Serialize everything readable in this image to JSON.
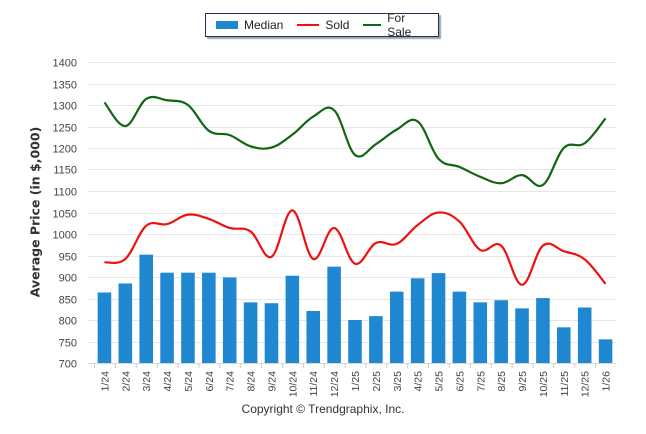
{
  "chart_data": {
    "type": "bar",
    "title": "",
    "xlabel": "",
    "ylabel": "Average Price (in $,000)",
    "ylim": [
      700,
      1400
    ],
    "yticks": [
      700,
      750,
      800,
      850,
      900,
      950,
      1000,
      1050,
      1100,
      1150,
      1200,
      1250,
      1300,
      1350,
      1400
    ],
    "grid": true,
    "legend_position": "top-center",
    "categories": [
      "1/24",
      "2/24",
      "3/24",
      "4/24",
      "5/24",
      "6/24",
      "7/24",
      "8/24",
      "9/24",
      "10/24",
      "11/24",
      "12/24",
      "1/25",
      "2/25",
      "3/25",
      "4/25",
      "5/25",
      "6/25",
      "7/25",
      "8/25",
      "9/25",
      "10/25",
      "11/25",
      "12/25",
      "1/26"
    ],
    "series": [
      {
        "name": "Median",
        "type": "bar",
        "color": "#1f88d0",
        "values": [
          864,
          885,
          952,
          910,
          910,
          910,
          899,
          841,
          839,
          903,
          821,
          924,
          800,
          809,
          866,
          897,
          909,
          866,
          841,
          846,
          827,
          851,
          783,
          829,
          755
        ]
      },
      {
        "name": "Sold",
        "type": "line",
        "color": "#ee1111",
        "values": [
          934,
          942,
          1019,
          1023,
          1045,
          1035,
          1014,
          1006,
          947,
          1055,
          942,
          1014,
          931,
          979,
          977,
          1021,
          1050,
          1029,
          963,
          973,
          882,
          973,
          960,
          941,
          884
        ]
      },
      {
        "name": "For Sale",
        "type": "line",
        "color": "#116611",
        "values": [
          1306,
          1251,
          1314,
          1311,
          1300,
          1240,
          1230,
          1204,
          1201,
          1231,
          1273,
          1288,
          1184,
          1209,
          1243,
          1262,
          1175,
          1156,
          1133,
          1118,
          1137,
          1114,
          1200,
          1211,
          1269
        ]
      }
    ]
  },
  "legend": {
    "items": [
      {
        "label": "Median",
        "color": "#1f88d0",
        "kind": "bar"
      },
      {
        "label": "Sold",
        "color": "#ee1111",
        "kind": "line"
      },
      {
        "label": "For Sale",
        "color": "#116611",
        "kind": "line"
      }
    ]
  },
  "footer": "Copyright © Trendgraphix, Inc."
}
